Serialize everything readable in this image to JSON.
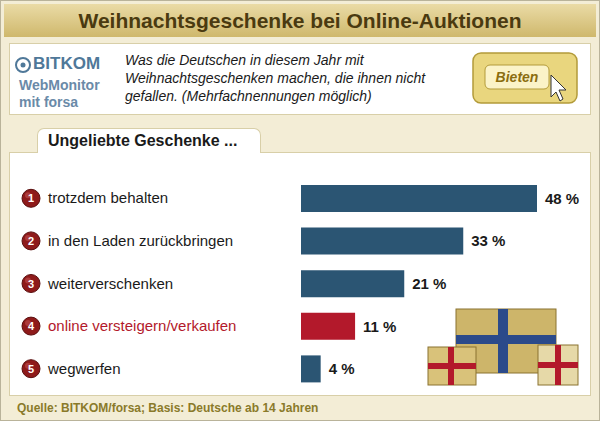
{
  "title": "Weihnachtsgeschenke bei Online-Auktionen",
  "logo": {
    "name": "BITKOM",
    "lines": [
      "WebMonitor",
      "mit forsa"
    ]
  },
  "subtitle": "Was die Deutschen in diesem Jahr mit Weihnachtsgeschenken machen, die ihnen nicht gefallen. (Mehrfachnennungen möglich)",
  "button_text": "Bieten",
  "chart_data": {
    "type": "bar",
    "orientation": "horizontal",
    "title": "Ungeliebte Geschenke ...",
    "categories": [
      "trotzdem behalten",
      "in den Laden zurückbringen",
      "weiterverschenken",
      "online versteigern/verkaufen",
      "wegwerfen"
    ],
    "ranks": [
      1,
      2,
      3,
      4,
      5
    ],
    "values": [
      48,
      33,
      21,
      11,
      4
    ],
    "value_labels": [
      "48 %",
      "33 %",
      "21 %",
      "11 %",
      "4 %"
    ],
    "colors": [
      "#2b5573",
      "#2b5573",
      "#2b5573",
      "#b3192b",
      "#2b5573"
    ],
    "xlim": [
      0,
      48
    ],
    "data_labels": true,
    "tick_labels": "y",
    "grid": false
  },
  "source": "Quelle: BITKOM/forsa; Basis: Deutsche ab 14 Jahren"
}
